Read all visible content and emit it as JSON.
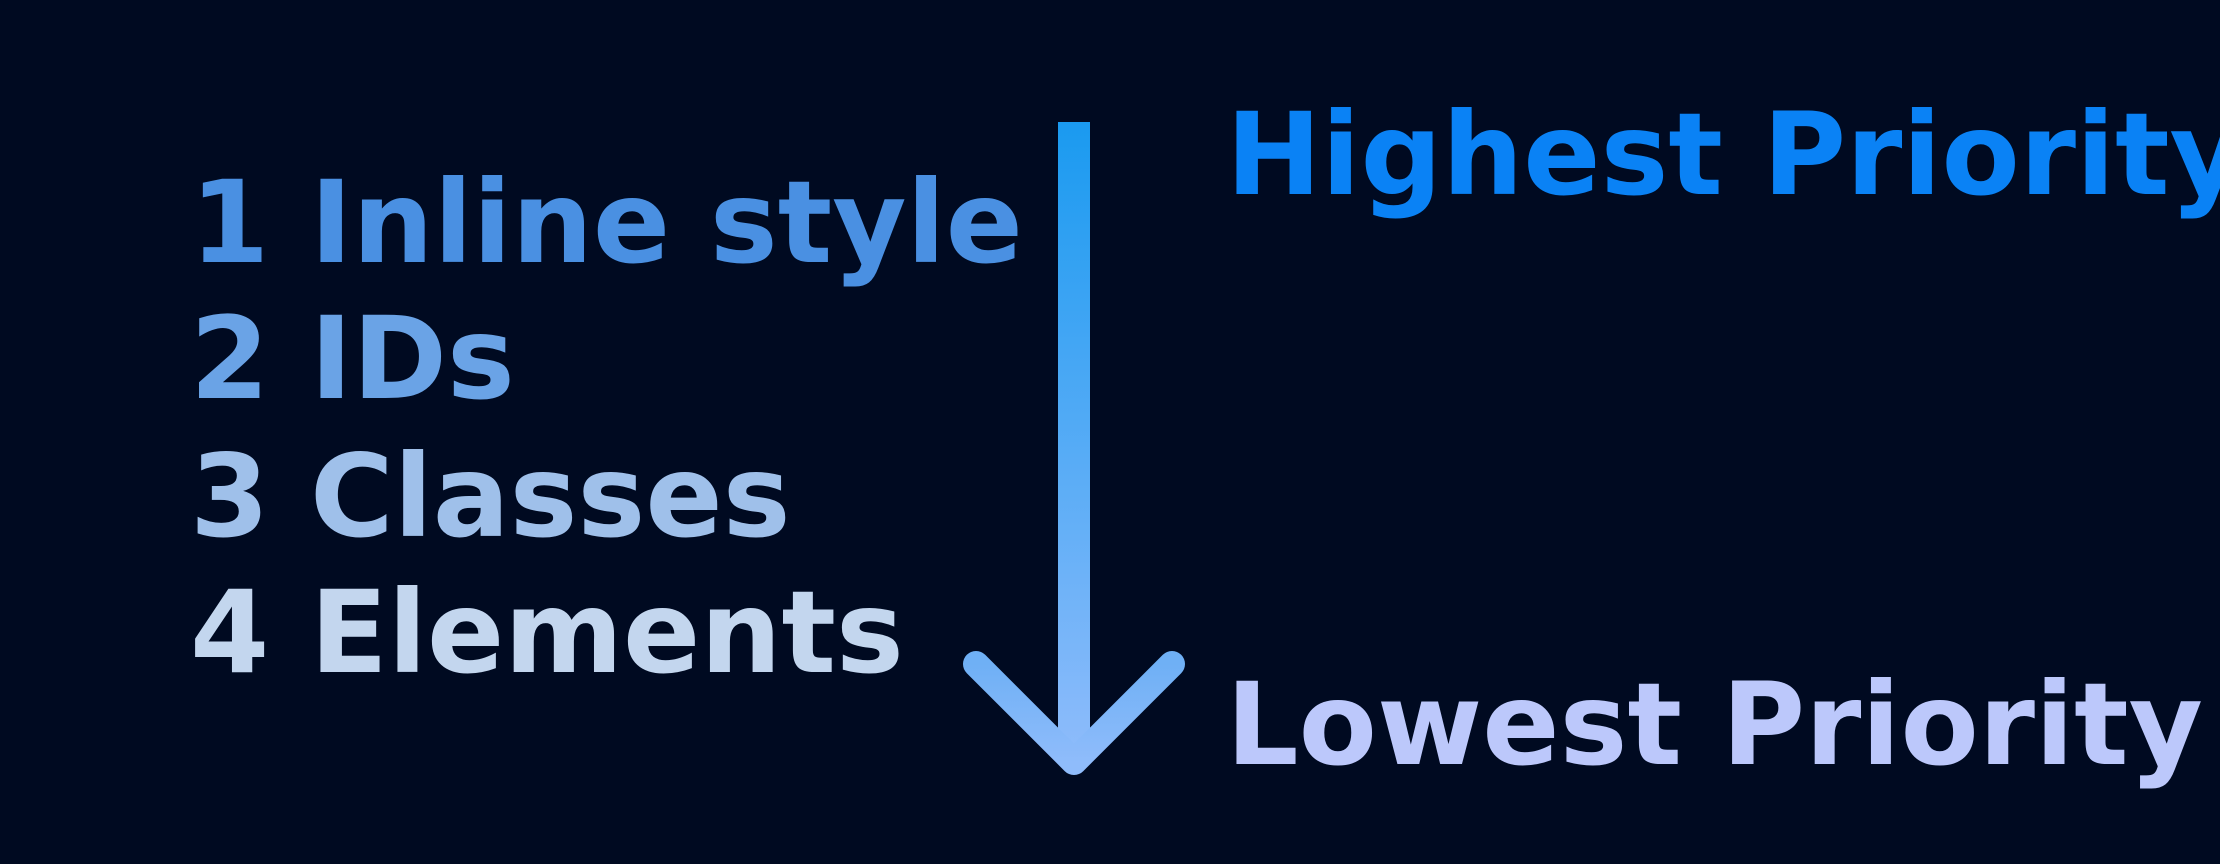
{
  "list": [
    {
      "number": "1",
      "label": "Inline style",
      "color": "#4a90e2"
    },
    {
      "number": "2",
      "label": "IDs",
      "color": "#6aa3e6"
    },
    {
      "number": "3",
      "label": "Classes",
      "color": "#9fc0ea"
    },
    {
      "number": "4",
      "label": "Elements",
      "color": "#c3d6ee"
    }
  ],
  "priority": {
    "highest": "Highest Priority",
    "lowest": "Lowest Priority",
    "highest_color": "#0a82f5",
    "lowest_color": "#bcc8fb"
  },
  "arrow": {
    "color_top": "#1a9af0",
    "color_bottom": "#8fbcfb"
  }
}
